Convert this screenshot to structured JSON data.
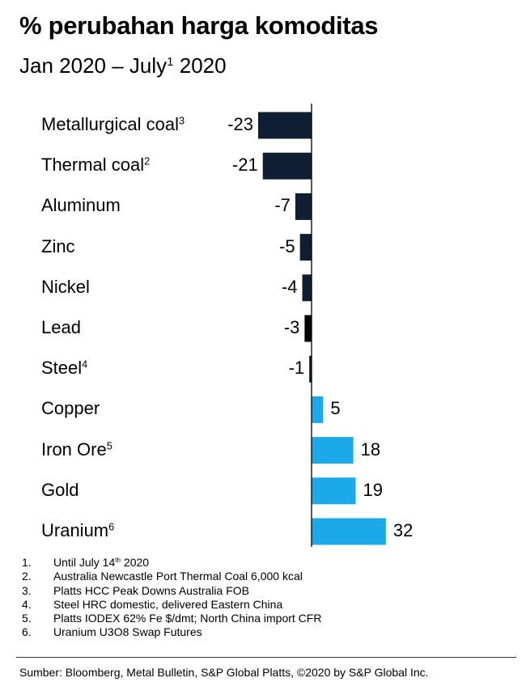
{
  "chart_data": {
    "type": "bar",
    "orientation": "horizontal",
    "title": "% perubahan harga komoditas",
    "subtitle": "Jan 2020 – July",
    "subtitle_sup": "1",
    "subtitle_end": " 2020",
    "categories": [
      "Metallurgical coal",
      "Thermal coal",
      "Aluminum",
      "Zinc",
      "Nickel",
      "Lead",
      "Steel",
      "Copper",
      "Iron Ore",
      "Gold",
      "Uranium"
    ],
    "category_sups": [
      "3",
      "2",
      "",
      "",
      "",
      "",
      "4",
      "",
      "5",
      "",
      "6"
    ],
    "values": [
      -23,
      -21,
      -7,
      -5,
      -4,
      -3,
      -1,
      5,
      18,
      19,
      32
    ],
    "value_labels": [
      "-23",
      "-21",
      "-7",
      "-5",
      "-4",
      "-3",
      "-1",
      "5",
      "18",
      "19",
      "32"
    ],
    "colors": {
      "negative": "#0f1f33",
      "lead": "#000000",
      "positive": "#1ba9e9"
    },
    "xlim": [
      -23,
      32
    ],
    "grid": false
  },
  "notes": [
    {
      "n": "1.",
      "text": "Until July 14",
      "sup": "th",
      "end": " 2020"
    },
    {
      "n": "2.",
      "text": "Australia Newcastle Port Thermal Coal 6,000 kcal"
    },
    {
      "n": "3.",
      "text": "Platts HCC Peak Downs Australia FOB"
    },
    {
      "n": "4.",
      "text": "Steel HRC domestic, delivered Eastern China"
    },
    {
      "n": "5.",
      "text": "Platts IODEX 62% Fe $/dmt; North China import CFR"
    },
    {
      "n": "6.",
      "text": "Uranium U3O8 Swap Futures"
    }
  ],
  "source": "Sumber: Bloomberg, Metal Bulletin, S&P Global Platts, ©2020 by S&P Global Inc."
}
